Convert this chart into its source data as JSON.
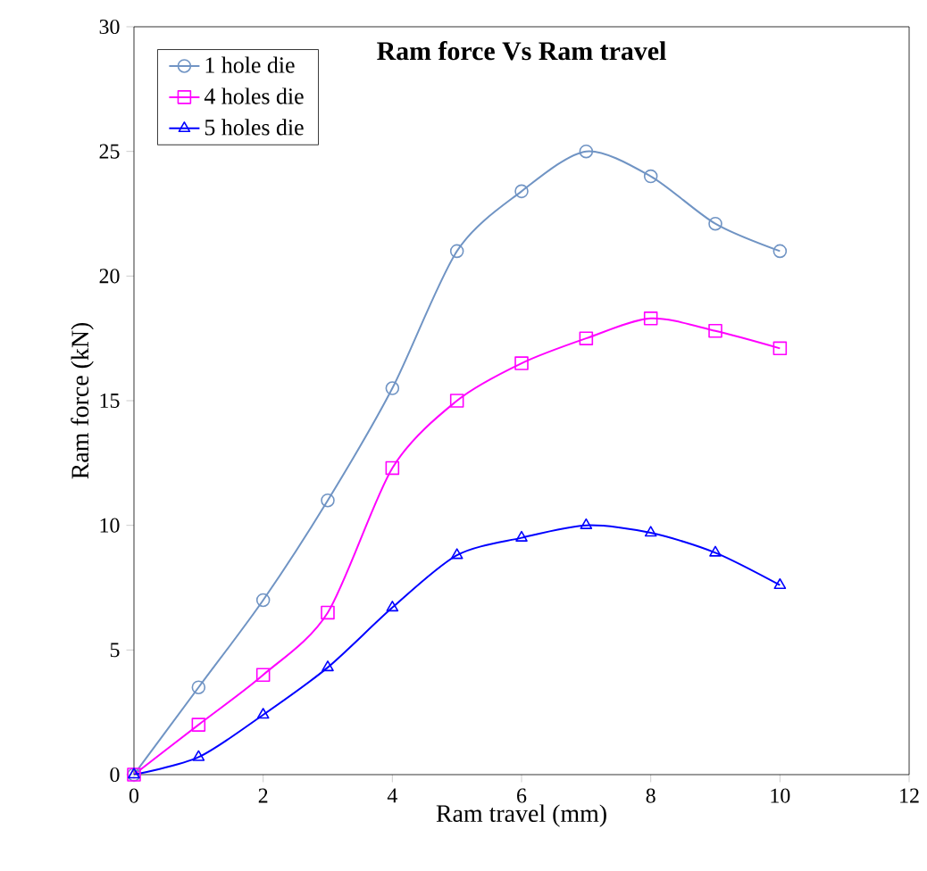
{
  "chart_data": {
    "type": "line",
    "title": "Ram force Vs Ram travel",
    "xlabel": "Ram travel (mm)",
    "ylabel": "Ram force (kN)",
    "x": [
      0,
      1,
      2,
      3,
      4,
      5,
      6,
      7,
      8,
      9,
      10
    ],
    "series": [
      {
        "name": "1 hole die",
        "color": "#7094c4",
        "marker": "circle",
        "values": [
          0,
          3.5,
          7,
          11,
          15.5,
          21,
          23.4,
          25,
          24,
          22.1,
          21
        ]
      },
      {
        "name": "4 holes die",
        "color": "#ff00ff",
        "marker": "square",
        "values": [
          0,
          2,
          4,
          6.5,
          12.3,
          15,
          16.5,
          17.5,
          18.3,
          17.8,
          17.1
        ]
      },
      {
        "name": "5 holes die",
        "color": "#0000ff",
        "marker": "triangle",
        "values": [
          0,
          0.7,
          2.4,
          4.3,
          6.7,
          8.8,
          9.5,
          10,
          9.7,
          8.9,
          7.6
        ]
      }
    ],
    "xlim": [
      0,
      12
    ],
    "xticks": [
      0,
      2,
      4,
      6,
      8,
      10,
      12
    ],
    "ylim": [
      0,
      30
    ],
    "yticks": [
      0,
      5,
      10,
      15,
      20,
      25,
      30
    ],
    "grid": false,
    "legend": "top left",
    "line_style": "solid"
  }
}
